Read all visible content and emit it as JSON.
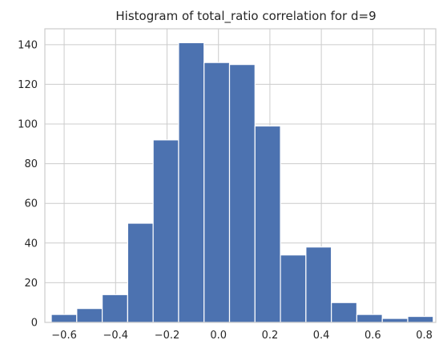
{
  "chart_data": {
    "type": "bar",
    "title": "Histogram of total_ratio correlation for d=9",
    "xlabel": "",
    "ylabel": "",
    "xlim": [
      -0.675,
      0.845
    ],
    "ylim": [
      0,
      148
    ],
    "grid": true,
    "bar_color": "#4c72b0",
    "bin_edges": [
      -0.65,
      -0.551,
      -0.452,
      -0.353,
      -0.254,
      -0.155,
      -0.056,
      0.043,
      0.142,
      0.241,
      0.34,
      0.439,
      0.538,
      0.637,
      0.736,
      0.835
    ],
    "counts": [
      4,
      7,
      14,
      50,
      92,
      141,
      131,
      130,
      99,
      34,
      38,
      10,
      4,
      2,
      3
    ],
    "x_ticks": [
      -0.6,
      -0.4,
      -0.2,
      0.0,
      0.2,
      0.4,
      0.6,
      0.8
    ],
    "x_tick_labels": [
      "−0.6",
      "−0.4",
      "−0.2",
      "0.0",
      "0.2",
      "0.4",
      "0.6",
      "0.8"
    ],
    "y_ticks": [
      0,
      20,
      40,
      60,
      80,
      100,
      120,
      140
    ],
    "y_tick_labels": [
      "0",
      "20",
      "40",
      "60",
      "80",
      "100",
      "120",
      "140"
    ]
  }
}
